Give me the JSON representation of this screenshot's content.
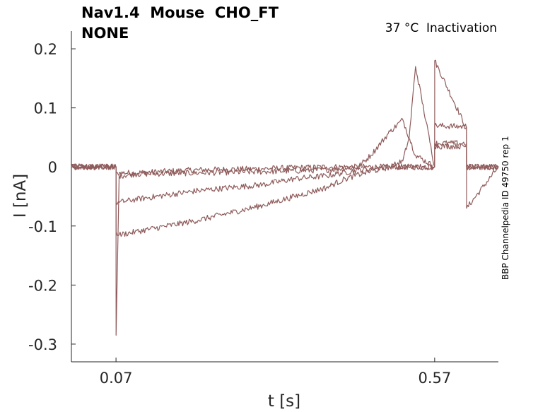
{
  "chart_data": {
    "type": "line",
    "title_lines": [
      "Nav1.4  Mouse  CHO_FT",
      "NONE"
    ],
    "subtitle": "37 °C  Inactivation",
    "side_note": "BBP Channelpedia ID 49750 rep 1",
    "xlabel": "t [s]",
    "ylabel": "I [nA]",
    "xlim": [
      0.0,
      0.67
    ],
    "ylim": [
      -0.33,
      0.23
    ],
    "xticks": [
      0.07,
      0.57
    ],
    "xtick_labels": [
      "0.07",
      "0.57"
    ],
    "yticks": [
      0.2,
      0.1,
      0,
      -0.1,
      -0.2,
      -0.3
    ],
    "ytick_labels": [
      "0.2",
      "0.1",
      "0",
      "-0.1",
      "-0.2",
      "-0.3"
    ],
    "grid": false,
    "trace_color": "#8f5b5b",
    "series": [
      {
        "x": [
          0.0,
          0.07,
          0.0701,
          0.075,
          0.1,
          0.2,
          0.3,
          0.4,
          0.47,
          0.5,
          0.57,
          0.5701,
          0.62,
          0.6201,
          0.67
        ],
        "y": [
          0.0,
          0.0,
          -0.285,
          -0.01,
          -0.01,
          -0.005,
          -0.003,
          0.0,
          0.0,
          0.0,
          0.0,
          0.18,
          0.065,
          -0.07,
          0.0
        ]
      },
      {
        "x": [
          0.0,
          0.07,
          0.0701,
          0.075,
          0.1,
          0.2,
          0.3,
          0.4,
          0.45,
          0.47,
          0.5,
          0.52,
          0.54,
          0.57,
          0.5701,
          0.62,
          0.6201,
          0.67
        ],
        "y": [
          0.0,
          0.0,
          -0.01,
          -0.015,
          -0.012,
          -0.01,
          -0.008,
          -0.005,
          0.0,
          0.02,
          0.06,
          0.08,
          0.02,
          0.0,
          0.07,
          0.068,
          0.0,
          0.0
        ]
      },
      {
        "x": [
          0.0,
          0.07,
          0.0701,
          0.075,
          0.1,
          0.2,
          0.3,
          0.35,
          0.4,
          0.45,
          0.5,
          0.52,
          0.53,
          0.54,
          0.57,
          0.5701,
          0.62,
          0.6201,
          0.67
        ],
        "y": [
          0.0,
          0.0,
          -0.06,
          -0.06,
          -0.055,
          -0.04,
          -0.03,
          -0.02,
          -0.015,
          -0.005,
          0.0,
          0.01,
          0.05,
          0.17,
          0.0,
          0.035,
          0.035,
          0.0,
          0.0
        ]
      },
      {
        "x": [
          0.0,
          0.07,
          0.0701,
          0.075,
          0.1,
          0.2,
          0.3,
          0.35,
          0.4,
          0.43,
          0.46,
          0.5,
          0.57,
          0.5701,
          0.62,
          0.6201,
          0.67
        ],
        "y": [
          0.0,
          0.0,
          -0.11,
          -0.115,
          -0.11,
          -0.09,
          -0.065,
          -0.05,
          -0.035,
          -0.02,
          -0.01,
          0.0,
          0.0,
          0.04,
          0.04,
          0.0,
          0.0
        ]
      }
    ]
  }
}
